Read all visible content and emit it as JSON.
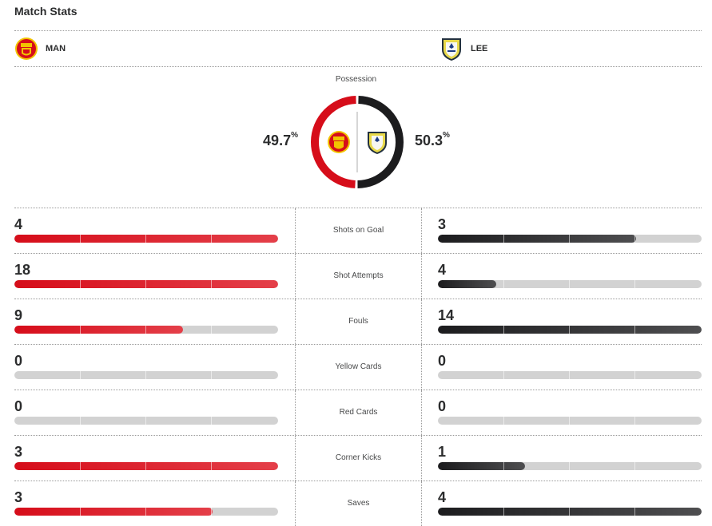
{
  "page": {
    "title": "Match Stats"
  },
  "teams": {
    "home": {
      "abbr": "MAN",
      "crest": "manchester-united-crest",
      "color": "#d60d1a"
    },
    "away": {
      "abbr": "LEE",
      "crest": "leeds-united-crest",
      "color": "#1c1c1e"
    }
  },
  "possession": {
    "label": "Possession",
    "home_value": "49.7",
    "away_value": "50.3",
    "unit": "%"
  },
  "stats": [
    {
      "label": "Shots on Goal",
      "home": "4",
      "away": "3",
      "home_fill": 1.0,
      "away_fill": 0.75
    },
    {
      "label": "Shot Attempts",
      "home": "18",
      "away": "4",
      "home_fill": 1.0,
      "away_fill": 0.22
    },
    {
      "label": "Fouls",
      "home": "9",
      "away": "14",
      "home_fill": 0.64,
      "away_fill": 1.0
    },
    {
      "label": "Yellow Cards",
      "home": "0",
      "away": "0",
      "home_fill": 0,
      "away_fill": 0
    },
    {
      "label": "Red Cards",
      "home": "0",
      "away": "0",
      "home_fill": 0,
      "away_fill": 0
    },
    {
      "label": "Corner Kicks",
      "home": "3",
      "away": "1",
      "home_fill": 1.0,
      "away_fill": 0.33
    },
    {
      "label": "Saves",
      "home": "3",
      "away": "4",
      "home_fill": 0.75,
      "away_fill": 1.0
    }
  ]
}
